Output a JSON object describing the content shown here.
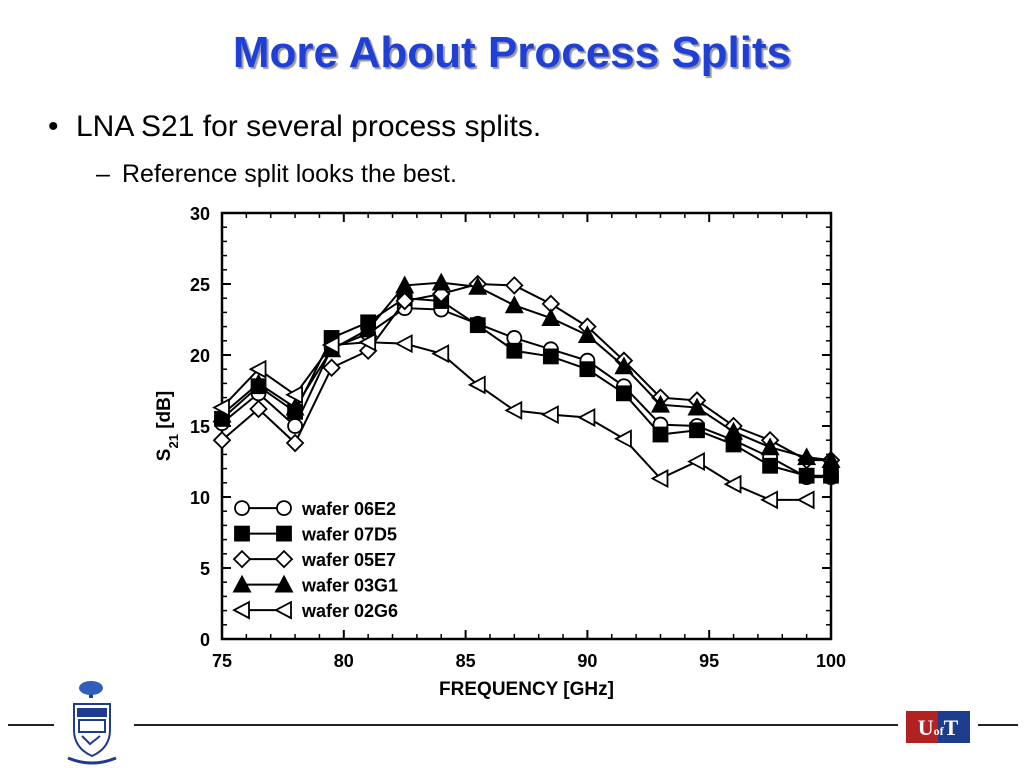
{
  "slide": {
    "title": "More About Process Splits",
    "bullet": "LNA S21 for several process splits.",
    "sub_bullet": "Reference split looks the best.",
    "logo_right_text": "U of T"
  },
  "chart_data": {
    "type": "line",
    "title": "",
    "xlabel": "FREQUENCY [GHz]",
    "ylabel_main": "S",
    "ylabel_sub": "21",
    "ylabel_unit": "[dB]",
    "xlim": [
      75,
      100
    ],
    "ylim": [
      0,
      30
    ],
    "xticks": [
      75,
      80,
      85,
      90,
      95,
      100
    ],
    "yticks": [
      0,
      5,
      10,
      15,
      20,
      25,
      30
    ],
    "grid": false,
    "legend_position": "bottom-left",
    "series": [
      {
        "name": "wafer 06E2",
        "marker": "circle-open",
        "x": [
          75,
          76.5,
          78,
          79.5,
          81,
          82.5,
          84,
          85.5,
          87,
          88.5,
          90,
          91.5,
          93,
          94.5,
          96,
          97.5,
          99,
          100
        ],
        "y": [
          15.2,
          17.3,
          15.0,
          20.5,
          21.5,
          23.3,
          23.2,
          22.2,
          21.2,
          20.4,
          19.6,
          17.8,
          15.1,
          15.0,
          14.0,
          12.8,
          11.4,
          11.4
        ]
      },
      {
        "name": "wafer 07D5",
        "marker": "square-filled",
        "x": [
          75,
          76.5,
          78,
          79.5,
          81,
          82.5,
          84,
          85.5,
          87,
          88.5,
          90,
          91.5,
          93,
          94.5,
          96,
          97.5,
          99,
          100
        ],
        "y": [
          15.5,
          17.8,
          16.0,
          21.2,
          22.3,
          24.0,
          23.8,
          22.1,
          20.3,
          19.9,
          19.0,
          17.3,
          14.4,
          14.7,
          13.7,
          12.2,
          11.5,
          11.5
        ]
      },
      {
        "name": "wafer 05E7",
        "marker": "diamond-open",
        "x": [
          75,
          76.5,
          78,
          79.5,
          81,
          82.5,
          84,
          85.5,
          87,
          88.5,
          90,
          91.5,
          93,
          94.5,
          96,
          97.5,
          99,
          100
        ],
        "y": [
          14.0,
          16.2,
          13.8,
          19.1,
          20.3,
          23.8,
          24.3,
          25.0,
          24.9,
          23.6,
          22.0,
          19.6,
          17.0,
          16.8,
          15.0,
          14.0,
          12.6,
          12.6
        ]
      },
      {
        "name": "wafer 03G1",
        "marker": "triangle-filled",
        "x": [
          75,
          76.5,
          78,
          79.5,
          81,
          82.5,
          84,
          85.5,
          87,
          88.5,
          90,
          91.5,
          93,
          94.5,
          96,
          97.5,
          99,
          100
        ],
        "y": [
          15.8,
          18.0,
          16.3,
          20.4,
          21.8,
          24.9,
          25.1,
          24.8,
          23.5,
          22.6,
          21.4,
          19.2,
          16.5,
          16.3,
          14.6,
          13.5,
          12.8,
          12.6
        ]
      },
      {
        "name": "wafer 02G6",
        "marker": "triangle-left-open",
        "x": [
          75,
          76.5,
          78,
          79.5,
          81,
          82.5,
          84,
          85.5,
          87,
          88.5,
          90,
          91.5,
          93,
          94.5,
          96,
          97.5,
          99
        ],
        "y": [
          16.3,
          19.0,
          17.2,
          20.7,
          20.9,
          20.8,
          20.1,
          17.9,
          16.1,
          15.8,
          15.6,
          14.1,
          11.3,
          12.5,
          10.9,
          9.8,
          9.8
        ]
      }
    ]
  }
}
